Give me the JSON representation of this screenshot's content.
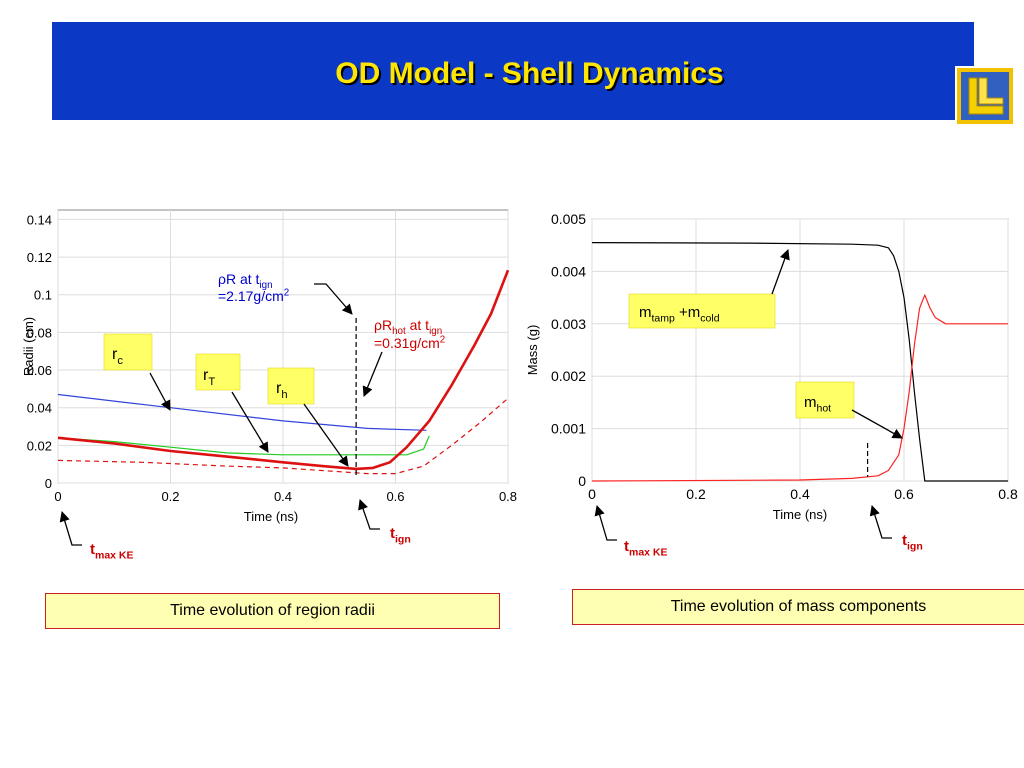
{
  "slide": {
    "title": "OD Model - Shell Dynamics",
    "colors": {
      "title_bar": "#0b39c6",
      "title_text": "#ffe600",
      "label_box": "#ffff66",
      "caption_bg": "#ffffb3",
      "caption_border": "#cc2020",
      "marker_text": "#cc0000",
      "annotation_blue": "#0000cc",
      "annotation_red": "#cc0000"
    },
    "captions": {
      "left": "Time evolution of region radii",
      "right": "Time evolution of mass components"
    }
  },
  "chart_data": [
    {
      "type": "line",
      "xlabel": "Time (ns)",
      "ylabel": "Radii (cm)",
      "xlim": [
        0,
        0.8
      ],
      "ylim": [
        0,
        0.145
      ],
      "x_ticks": [
        "0",
        "0.2",
        "0.4",
        "0.6",
        "0.8"
      ],
      "y_ticks": [
        "0",
        "0.02",
        "0.04",
        "0.06",
        "0.08",
        "0.1",
        "0.12",
        "0.14"
      ],
      "y_tick_values": [
        0,
        0.02,
        0.04,
        0.06,
        0.08,
        0.1,
        0.12,
        0.14
      ],
      "grid": true,
      "series": [
        {
          "color": "#3344dd",
          "style": "solid",
          "points": [
            [
              0,
              0.047
            ],
            [
              0.2,
              0.04
            ],
            [
              0.4,
              0.033
            ],
            [
              0.55,
              0.029
            ],
            [
              0.655,
              0.028
            ]
          ]
        },
        {
          "color": "#22cc22",
          "style": "solid",
          "points": [
            [
              0,
              0.024
            ],
            [
              0.1,
              0.022
            ],
            [
              0.2,
              0.019
            ],
            [
              0.3,
              0.016
            ],
            [
              0.4,
              0.015
            ],
            [
              0.55,
              0.015
            ],
            [
              0.62,
              0.015
            ],
            [
              0.65,
              0.018
            ],
            [
              0.66,
              0.025
            ]
          ]
        },
        {
          "color": "#dd1111",
          "style": "bold",
          "points": [
            [
              0,
              0.024
            ],
            [
              0.1,
              0.021
            ],
            [
              0.2,
              0.017
            ],
            [
              0.3,
              0.014
            ],
            [
              0.4,
              0.011
            ],
            [
              0.47,
              0.009
            ],
            [
              0.53,
              0.0075
            ],
            [
              0.56,
              0.008
            ],
            [
              0.59,
              0.011
            ],
            [
              0.62,
              0.019
            ],
            [
              0.66,
              0.033
            ],
            [
              0.7,
              0.052
            ],
            [
              0.74,
              0.073
            ],
            [
              0.77,
              0.09
            ],
            [
              0.8,
              0.113
            ]
          ]
        },
        {
          "color": "#dd1111",
          "style": "dashed",
          "points": [
            [
              0,
              0.012
            ],
            [
              0.15,
              0.011
            ],
            [
              0.3,
              0.009
            ],
            [
              0.4,
              0.008
            ],
            [
              0.5,
              0.006
            ],
            [
              0.55,
              0.005
            ],
            [
              0.6,
              0.005
            ],
            [
              0.65,
              0.009
            ],
            [
              0.7,
              0.02
            ],
            [
              0.75,
              0.032
            ],
            [
              0.8,
              0.045
            ]
          ]
        }
      ],
      "markers": {
        "t_ign": 0.53
      },
      "labels": [
        {
          "main": "r",
          "sub": "c"
        },
        {
          "main": "r",
          "sub": "T"
        },
        {
          "main": "r",
          "sub": "h"
        }
      ],
      "annotations": {
        "rhoR": {
          "rho": "ρ",
          "pre": "R at t",
          "sub": "ign",
          "line2": "=2.17g/cm",
          "sup": "2"
        },
        "rhoRhot": {
          "rho": "ρ",
          "pre": "R",
          "sub1": "hot",
          "mid": " at t",
          "sub2": "ign",
          "line2": "=0.31g/cm",
          "sup": "2"
        }
      },
      "tmaxKE": {
        "main": "t",
        "sub": "max KE"
      },
      "tign": {
        "main": "t",
        "sub": "ign"
      }
    },
    {
      "type": "line",
      "xlabel": "Time (ns)",
      "ylabel": "Mass (g)",
      "xlim": [
        0,
        0.8
      ],
      "ylim": [
        0,
        0.005
      ],
      "x_ticks": [
        "0",
        "0.2",
        "0.4",
        "0.6",
        "0.8"
      ],
      "y_ticks": [
        "0",
        "0.001",
        "0.002",
        "0.003",
        "0.004",
        "0.005"
      ],
      "y_tick_values": [
        0,
        0.001,
        0.002,
        0.003,
        0.004,
        0.005
      ],
      "grid": true,
      "series": [
        {
          "color": "#000000",
          "style": "solid",
          "points": [
            [
              0,
              0.00455
            ],
            [
              0.3,
              0.00454
            ],
            [
              0.5,
              0.00452
            ],
            [
              0.55,
              0.0045
            ],
            [
              0.57,
              0.00445
            ],
            [
              0.58,
              0.0043
            ],
            [
              0.59,
              0.004
            ],
            [
              0.6,
              0.0035
            ],
            [
              0.61,
              0.0027
            ],
            [
              0.62,
              0.0017
            ],
            [
              0.63,
              0.0008
            ],
            [
              0.64,
              0.0
            ],
            [
              0.8,
              0.0
            ]
          ]
        },
        {
          "color": "#ff2222",
          "style": "solid",
          "points": [
            [
              0,
              0.0
            ],
            [
              0.4,
              2e-05
            ],
            [
              0.5,
              5e-05
            ],
            [
              0.55,
              0.0001
            ],
            [
              0.57,
              0.0002
            ],
            [
              0.59,
              0.0005
            ],
            [
              0.6,
              0.001
            ],
            [
              0.61,
              0.0017
            ],
            [
              0.62,
              0.0026
            ],
            [
              0.63,
              0.0033
            ],
            [
              0.64,
              0.00355
            ],
            [
              0.65,
              0.0033
            ],
            [
              0.66,
              0.00312
            ],
            [
              0.68,
              0.003
            ],
            [
              0.8,
              0.003
            ]
          ]
        }
      ],
      "markers": {
        "t_ign": 0.53
      },
      "labels": [
        {
          "m1": "m",
          "sub1": "tamp",
          "plus": " +m",
          "sub2": "cold"
        },
        {
          "main": "m",
          "sub": "hot"
        }
      ],
      "tmaxKE": {
        "main": "t",
        "sub": "max KE"
      },
      "tign": {
        "main": "t",
        "sub": "ign"
      }
    }
  ]
}
